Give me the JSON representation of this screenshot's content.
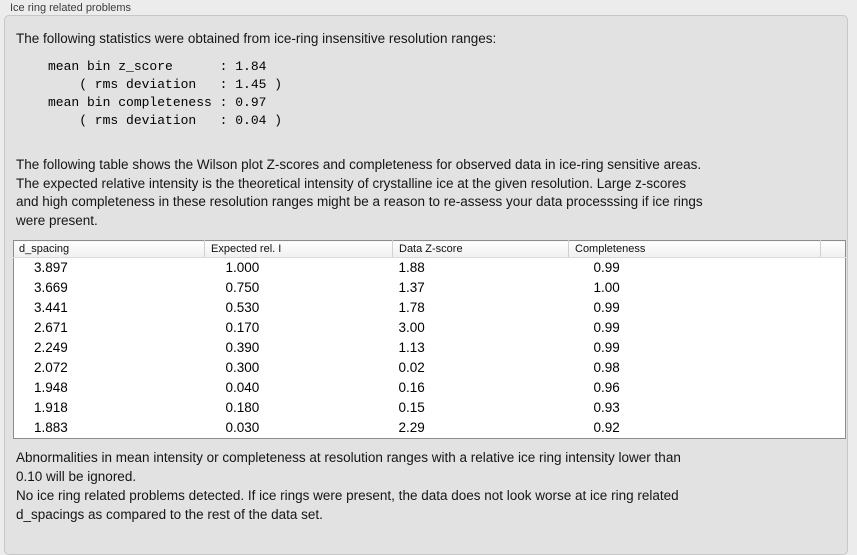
{
  "panel": {
    "title": "Ice ring related problems"
  },
  "intro": {
    "text": "The following statistics were obtained from ice-ring insensitive resolution ranges:"
  },
  "stats_block": {
    "text": "mean bin z_score      : 1.84\n    ( rms deviation   : 1.45 )\nmean bin completeness : 0.97\n    ( rms deviation   : 0.04 )"
  },
  "table_description": {
    "text": "The following table shows the Wilson plot Z-scores and completeness for observed data in ice-ring sensitive areas.\nThe expected relative intensity is the theoretical intensity of crystalline ice at the given resolution. Large z-scores\nand high completeness in these resolution ranges might be a reason to re-assess your data processsing if ice rings\nwere present."
  },
  "table": {
    "columns": [
      "d_spacing",
      "Expected rel. I",
      "Data Z-score",
      "Completeness"
    ],
    "rows": [
      [
        "3.897",
        "1.000",
        "1.88",
        "0.99"
      ],
      [
        "3.669",
        "0.750",
        "1.37",
        "1.00"
      ],
      [
        "3.441",
        "0.530",
        "1.78",
        "0.99"
      ],
      [
        "2.671",
        "0.170",
        "3.00",
        "0.99"
      ],
      [
        "2.249",
        "0.390",
        "1.13",
        "0.99"
      ],
      [
        "2.072",
        "0.300",
        "0.02",
        "0.98"
      ],
      [
        "1.948",
        "0.040",
        "0.16",
        "0.96"
      ],
      [
        "1.918",
        "0.180",
        "0.15",
        "0.93"
      ],
      [
        "1.883",
        "0.030",
        "2.29",
        "0.92"
      ]
    ]
  },
  "notes": {
    "ignore_note": "Abnormalities in mean intensity or completeness at resolution ranges with a relative ice ring intensity lower than\n0.10 will be ignored.",
    "conclusion": "No ice ring related problems detected. If ice rings were present, the data does not look worse at ice ring related\nd_spacings as compared to the rest of the data set."
  }
}
